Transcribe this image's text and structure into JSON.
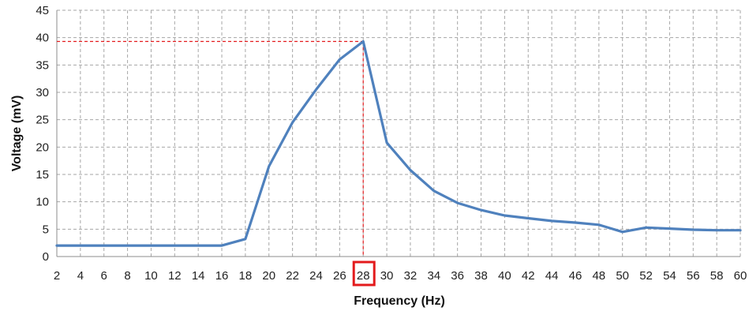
{
  "chart_data": {
    "type": "line",
    "xlabel": "Frequency (Hz)",
    "ylabel": "Voltage (mV)",
    "xlim": [
      2,
      60
    ],
    "ylim": [
      0,
      45
    ],
    "x_ticks": [
      2,
      4,
      6,
      8,
      10,
      12,
      14,
      16,
      18,
      20,
      22,
      24,
      26,
      28,
      30,
      32,
      34,
      36,
      38,
      40,
      42,
      44,
      46,
      48,
      50,
      52,
      54,
      56,
      58,
      60
    ],
    "y_ticks": [
      0,
      5,
      10,
      15,
      20,
      25,
      30,
      35,
      40,
      45
    ],
    "grid": true,
    "grid_style": "dashed",
    "series": [
      {
        "x": [
          2,
          4,
          6,
          8,
          10,
          12,
          14,
          16,
          18,
          20,
          22,
          24,
          26,
          28,
          30,
          32,
          34,
          36,
          38,
          40,
          42,
          44,
          46,
          48,
          50,
          52,
          54,
          56,
          58,
          60
        ],
        "values": [
          2,
          2,
          2,
          2,
          2,
          2,
          2,
          2,
          3.2,
          16.5,
          24.5,
          30.5,
          36,
          39.3,
          20.8,
          15.8,
          12,
          9.8,
          8.5,
          7.5,
          7,
          6.5,
          6.2,
          5.8,
          4.5,
          5.3,
          5.1,
          4.9,
          4.8,
          4.8
        ],
        "color": "#4f81bd"
      }
    ],
    "annotations": {
      "peak": {
        "x": 28,
        "y": 39.3,
        "color": "#e31a1c"
      },
      "highlighted_tick": "28",
      "highlight_color": "#e31a1c"
    }
  }
}
